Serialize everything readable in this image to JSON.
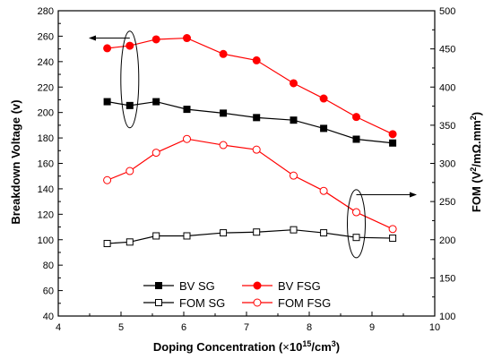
{
  "chart_data": {
    "type": "line",
    "x": [
      4.78,
      5.14,
      5.56,
      6.05,
      6.63,
      7.16,
      7.75,
      8.23,
      8.75,
      9.33
    ],
    "xlabel_main": "Doping Concentration (",
    "xlabel_times": "×",
    "xlabel_mid": "10",
    "xlabel_sup": "15",
    "xlabel_end": "/cm",
    "xlabel_sup2": "3",
    "xlabel_close": ")",
    "ylabel_left": "Breakdown Voltage (v)",
    "ylabel_right_a": "FOM (V",
    "ylabel_right_sup1": "2",
    "ylabel_right_b": "/mΩ.mm",
    "ylabel_right_sup2": "2",
    "ylabel_right_c": ")",
    "xlim": [
      4,
      10
    ],
    "ylim_left": [
      40,
      280
    ],
    "ylim_right": [
      100,
      500
    ],
    "xticks": [
      "4",
      "5",
      "6",
      "7",
      "8",
      "9",
      "10"
    ],
    "yticks_left": [
      "40",
      "60",
      "80",
      "100",
      "120",
      "140",
      "160",
      "180",
      "200",
      "220",
      "240",
      "260",
      "280"
    ],
    "yticks_right": [
      "100",
      "150",
      "200",
      "250",
      "300",
      "350",
      "400",
      "450",
      "500"
    ],
    "series": [
      {
        "name": "BV SG",
        "axis": "left",
        "color": "#000000",
        "marker": "square-filled",
        "values": [
          208.5,
          205.5,
          208.5,
          202.5,
          199.5,
          196,
          194,
          187.5,
          179,
          176
        ]
      },
      {
        "name": "BV FSG",
        "axis": "left",
        "color": "#ff0000",
        "marker": "circle-filled",
        "values": [
          250.5,
          252.5,
          257.5,
          258.5,
          246,
          241,
          223,
          211,
          196.5,
          183
        ]
      },
      {
        "name": "FOM SG",
        "axis": "right",
        "color": "#000000",
        "marker": "square-open",
        "values": [
          195,
          197,
          205,
          205,
          209,
          210,
          213,
          209,
          203,
          202
        ]
      },
      {
        "name": "FOM FSG",
        "axis": "right",
        "color": "#ff0000",
        "marker": "circle-open",
        "values": [
          278,
          290,
          314,
          332,
          324,
          318,
          284,
          264,
          236,
          214
        ]
      }
    ],
    "legend_placement": "bottom-center",
    "grid": false
  }
}
